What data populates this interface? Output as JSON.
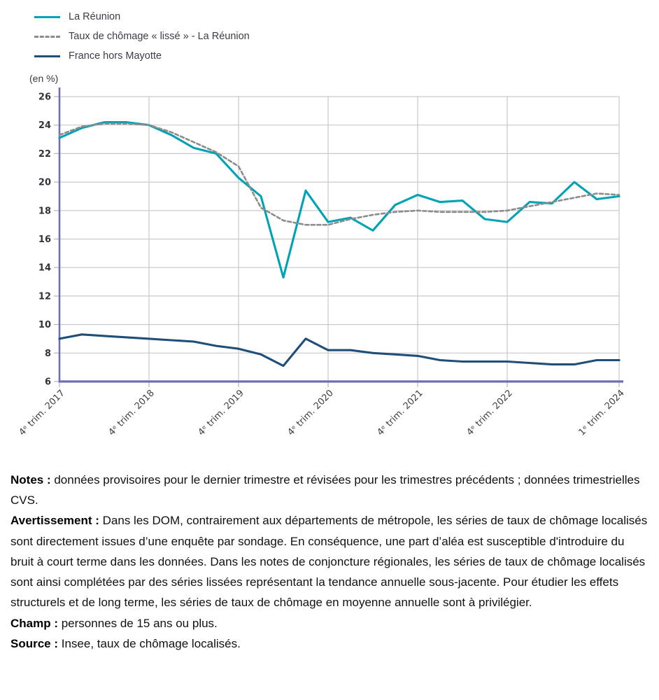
{
  "chart": {
    "unit_label": "(en %)"
  },
  "chart_data": {
    "type": "line",
    "x": [
      "2017-T4",
      "2018-T1",
      "2018-T2",
      "2018-T3",
      "2018-T4",
      "2019-T1",
      "2019-T2",
      "2019-T3",
      "2019-T4",
      "2020-T1",
      "2020-T2",
      "2020-T3",
      "2020-T4",
      "2021-T1",
      "2021-T2",
      "2021-T3",
      "2021-T4",
      "2022-T1",
      "2022-T2",
      "2022-T3",
      "2022-T4",
      "2023-T1",
      "2023-T2",
      "2023-T3",
      "2023-T4",
      "2024-T1"
    ],
    "x_tick_labels": [
      {
        "index": 0,
        "label": "4ᵉ trim. 2017"
      },
      {
        "index": 4,
        "label": "4ᵉ trim. 2018"
      },
      {
        "index": 8,
        "label": "4ᵉ trim. 2019"
      },
      {
        "index": 12,
        "label": "4ᵉ trim. 2020"
      },
      {
        "index": 16,
        "label": "4ᵉ trim. 2021"
      },
      {
        "index": 20,
        "label": "4ᵉ trim. 2022"
      },
      {
        "index": 25,
        "label": "1ᵉ trim. 2024"
      }
    ],
    "ylim": [
      6,
      26
    ],
    "ytick_step": 2,
    "ylabel": "(en %)",
    "grid": true,
    "legend_position": "top-left",
    "series": [
      {
        "name": "La Réunion",
        "color": "#00a3b5",
        "style": "solid",
        "values": [
          23.1,
          23.8,
          24.2,
          24.2,
          24.0,
          23.3,
          22.4,
          22.0,
          20.3,
          19.0,
          13.3,
          19.4,
          17.2,
          17.5,
          16.6,
          18.4,
          19.1,
          18.6,
          18.7,
          17.4,
          17.2,
          18.6,
          18.5,
          20.0,
          18.8,
          19.0
        ]
      },
      {
        "name": "Taux de chômage « lissé » - La Réunion",
        "color": "#8c8c8c",
        "style": "dashed",
        "values": [
          23.3,
          23.9,
          24.1,
          24.1,
          24.0,
          23.5,
          22.8,
          22.1,
          21.1,
          18.2,
          17.3,
          17.0,
          17.0,
          17.4,
          17.7,
          17.9,
          18.0,
          17.9,
          17.9,
          17.9,
          18.0,
          18.3,
          18.6,
          18.9,
          19.2,
          19.1
        ]
      },
      {
        "name": "France hors Mayotte",
        "color": "#1f4e79",
        "style": "solid",
        "values": [
          9.0,
          9.3,
          9.2,
          9.1,
          9.0,
          8.9,
          8.8,
          8.5,
          8.3,
          7.9,
          7.1,
          9.0,
          8.2,
          8.2,
          8.0,
          7.9,
          7.8,
          7.5,
          7.4,
          7.4,
          7.4,
          7.3,
          7.2,
          7.2,
          7.5,
          7.5
        ]
      }
    ],
    "axis_color": "#6e6eb8",
    "gridline_color": "#c9c9c9"
  },
  "notes": {
    "items": [
      {
        "label": "Notes :",
        "text": " données provisoires pour le dernier trimestre et révisées pour les trimestres précédents ; données trimestrielles CVS."
      },
      {
        "label": "Avertissement  :",
        "text": " Dans les DOM, contrairement aux départements de métropole, les séries de taux de chômage localisés sont directement issues d’une enquête par sondage. En conséquence, une part d’aléa est susceptible d'introduire du bruit à court terme dans les données. Dans les notes de conjoncture régionales, les séries de taux de chômage localisés sont ainsi complétées par des séries lissées représentant la tendance annuelle sous-jacente. Pour étudier les effets structurels et de long terme, les séries de taux de chômage en moyenne annuelle sont à privilégier."
      },
      {
        "label": "Champ :",
        "text": " personnes de 15 ans ou plus."
      },
      {
        "label": "Source :",
        "text": " Insee, taux de chômage localisés."
      }
    ]
  }
}
